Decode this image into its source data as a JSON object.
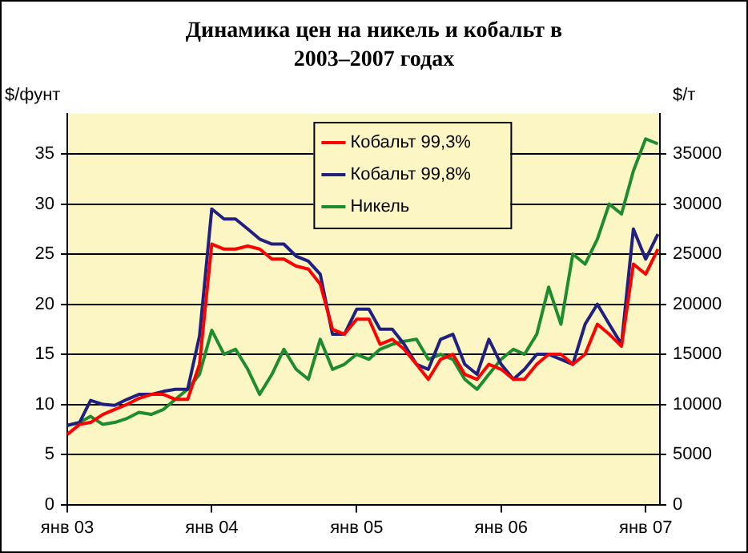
{
  "chart_data": {
    "type": "line",
    "title": "Динамика цен на никель и кобальт в 2003–2007 годах",
    "ylabel": "$/фунт",
    "y2label": "$/т",
    "x": [
      "2003-01",
      "2003-02",
      "2003-03",
      "2003-04",
      "2003-05",
      "2003-06",
      "2003-07",
      "2003-08",
      "2003-09",
      "2003-10",
      "2003-11",
      "2003-12",
      "2004-01",
      "2004-02",
      "2004-03",
      "2004-04",
      "2004-05",
      "2004-06",
      "2004-07",
      "2004-08",
      "2004-09",
      "2004-10",
      "2004-11",
      "2004-12",
      "2005-01",
      "2005-02",
      "2005-03",
      "2005-04",
      "2005-05",
      "2005-06",
      "2005-07",
      "2005-08",
      "2005-09",
      "2005-10",
      "2005-11",
      "2005-12",
      "2006-01",
      "2006-02",
      "2006-03",
      "2006-04",
      "2006-05",
      "2006-06",
      "2006-07",
      "2006-08",
      "2006-09",
      "2006-10",
      "2006-11",
      "2006-12",
      "2007-01",
      "2007-02"
    ],
    "series": [
      {
        "name": "Кобальт 99,3%",
        "color": "#ff0000",
        "values": [
          7.0,
          8.0,
          8.2,
          9.0,
          9.5,
          10.0,
          10.6,
          11.0,
          11.0,
          10.5,
          10.5,
          14.0,
          26.0,
          25.5,
          25.5,
          25.8,
          25.5,
          24.5,
          24.5,
          23.8,
          23.5,
          22.0,
          17.5,
          17.0,
          18.5,
          18.5,
          16.0,
          16.5,
          15.5,
          14.0,
          12.5,
          14.5,
          15.0,
          13.0,
          12.5,
          14.0,
          13.5,
          12.5,
          12.5,
          14.0,
          15.0,
          15.0,
          14.0,
          15.0,
          18.0,
          17.0,
          15.8,
          24.0,
          23.0,
          25.5
        ]
      },
      {
        "name": "Кобальт 99,8%",
        "color": "#202080",
        "values": [
          7.9,
          8.2,
          10.4,
          10.0,
          9.9,
          10.5,
          11.0,
          11.0,
          11.3,
          11.5,
          11.5,
          16.8,
          29.5,
          28.5,
          28.5,
          27.5,
          26.5,
          26.0,
          26.0,
          24.8,
          24.3,
          23.0,
          17.0,
          17.0,
          19.5,
          19.5,
          17.5,
          17.5,
          16.0,
          14.0,
          13.5,
          16.5,
          17.0,
          14.0,
          13.0,
          16.5,
          14.0,
          12.5,
          13.5,
          15.0,
          15.0,
          14.5,
          14.0,
          18.0,
          20.0,
          18.0,
          16.0,
          27.5,
          24.5,
          27.0
        ]
      },
      {
        "name": "Никель",
        "color": "#1e8c2e",
        "axis": "y2",
        "values": [
          7900,
          8200,
          8800,
          8000,
          8200,
          8600,
          9200,
          9000,
          9500,
          10500,
          11500,
          13000,
          17400,
          15000,
          15500,
          13500,
          11000,
          13000,
          15500,
          13500,
          12500,
          16500,
          13500,
          14000,
          15000,
          14500,
          15500,
          16000,
          16300,
          16500,
          14500,
          15000,
          14500,
          12500,
          11500,
          13000,
          14500,
          15500,
          15000,
          17000,
          21700,
          18000,
          25000,
          24000,
          26500,
          30000,
          29000,
          33300,
          36500,
          36000
        ]
      }
    ],
    "xlim": [
      "2003-01",
      "2007-02-06"
    ],
    "xticks": [
      {
        "value": "2003-01",
        "label": "янв 03"
      },
      {
        "value": "2004-01",
        "label": "янв 04"
      },
      {
        "value": "2005-01",
        "label": "янв 05"
      },
      {
        "value": "2006-01",
        "label": "янв 06"
      },
      {
        "value": "2007-01",
        "label": "янв 07"
      }
    ],
    "ylim": [
      0,
      39
    ],
    "yticks": [
      0,
      5,
      10,
      15,
      20,
      25,
      30,
      35
    ],
    "y2lim": [
      0,
      39000
    ],
    "y2ticks": [
      0,
      5000,
      10000,
      15000,
      20000,
      25000,
      30000,
      35000
    ],
    "grid": "y",
    "legend": "top",
    "marker": "none"
  }
}
